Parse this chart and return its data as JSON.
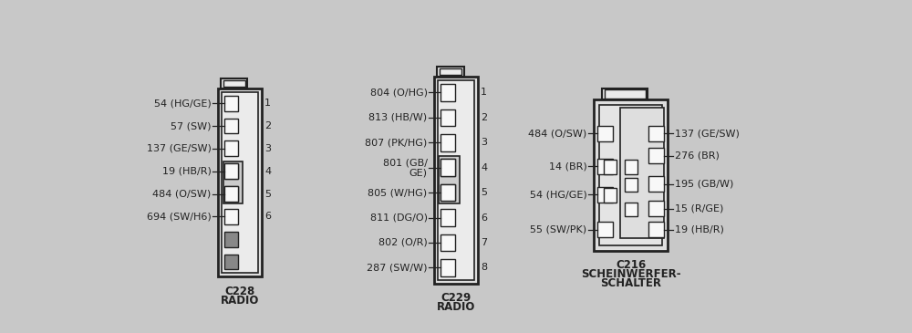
{
  "bg_color": "#c8c8c8",
  "line_color": "#222222",
  "font_size": 8.0,
  "title_font_size": 8.5,
  "c228": {
    "label1": "C228",
    "label2": "RADIO",
    "pins": [
      "54 (HG/GE)",
      "57 (SW)",
      "137 (GE/SW)",
      "19 (HB/R)",
      "484 (O/SW)",
      "694 (SW/H6)"
    ]
  },
  "c229": {
    "label1": "C229",
    "label2": "RADIO",
    "pins": [
      "804 (O/HG)",
      "813 (HB/W)",
      "807 (PK/HG)",
      "801 (GB/\nGE)",
      "805 (W/HG)",
      "811 (DG/O)",
      "802 (O/R)",
      "287 (SW/W)"
    ]
  },
  "c216": {
    "label1": "C216",
    "label2": "SCHEINWERFER-",
    "label3": "SCHALTER",
    "pins_left": [
      "484 (O/SW)",
      "14 (BR)",
      "54 (HG/GE)",
      "55 (SW/PK)"
    ],
    "pins_right": [
      "137 (GE/SW)",
      "276 (BR)",
      "195 (GB/W)",
      "15 (R/GE)",
      "19 (HB/R)"
    ]
  }
}
